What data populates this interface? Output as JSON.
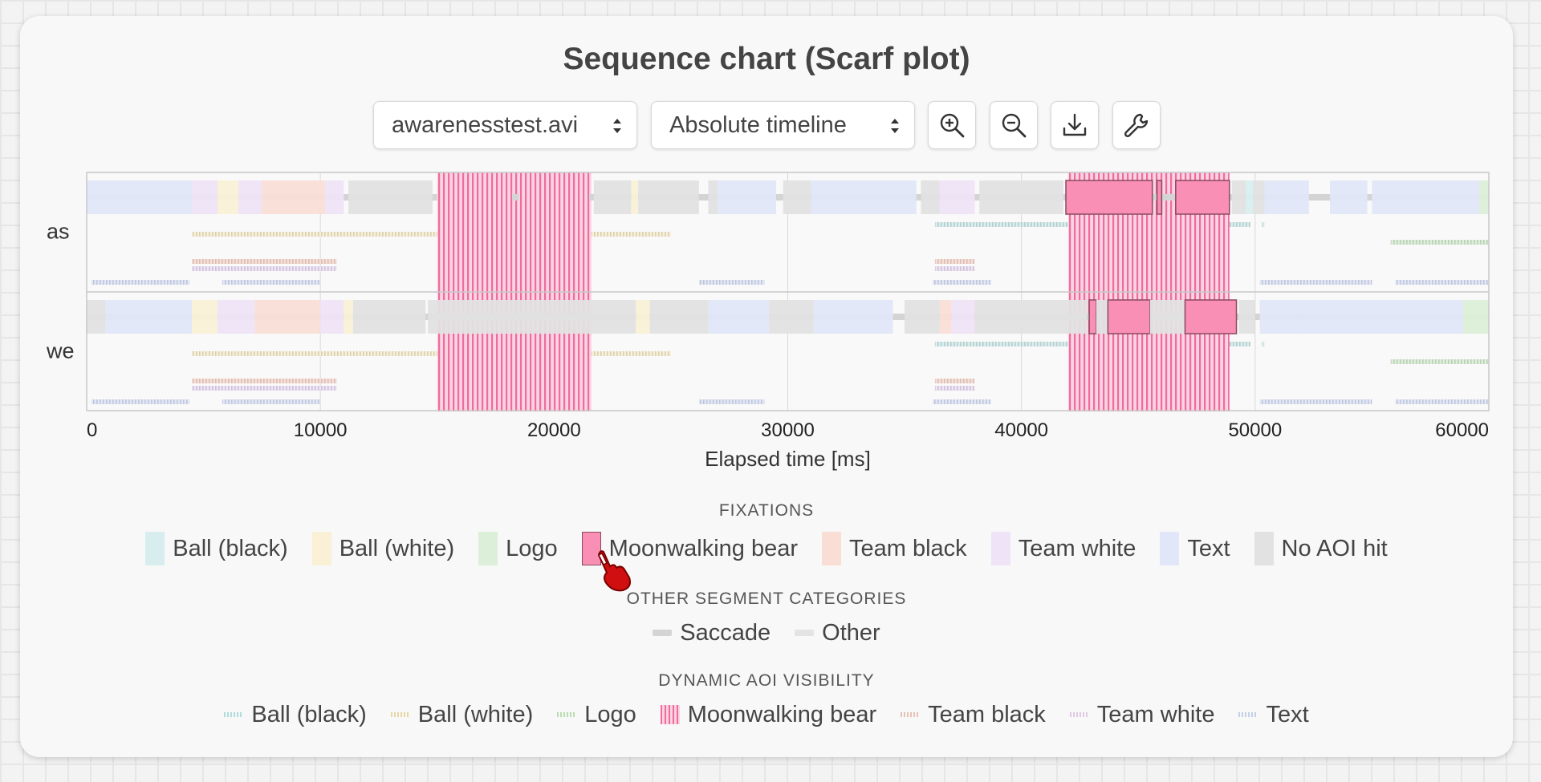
{
  "title": "Sequence chart (Scarf plot)",
  "controls": {
    "stimulus_select": "awarenesstest.avi",
    "timeline_select": "Absolute timeline",
    "icons": [
      "zoom-in-icon",
      "zoom-out-icon",
      "download-icon",
      "wrench-icon"
    ]
  },
  "colors": {
    "ball_black": "#d8eeee",
    "ball_white": "#f9f0d6",
    "logo": "#dcefd8",
    "moonwalking_bear": "#f98fb4",
    "team_black": "#f9ded6",
    "team_white": "#efe3f7",
    "text": "#e1e7f8",
    "no_aoi": "#e2e2e2",
    "saccade": "#d4d4d4",
    "other": "#e4e4e4"
  },
  "chart_data": {
    "type": "scarf",
    "xlabel": "Elapsed time [ms]",
    "xlim": [
      0,
      60000
    ],
    "xticks": [
      0,
      10000,
      20000,
      30000,
      40000,
      50000,
      60000
    ],
    "participants": [
      {
        "name": "as",
        "fixations": [
          {
            "aoi": "text",
            "start": 0,
            "end": 4500
          },
          {
            "aoi": "team_white",
            "start": 4500,
            "end": 5600
          },
          {
            "aoi": "ball_white",
            "start": 5600,
            "end": 6500
          },
          {
            "aoi": "team_white",
            "start": 6500,
            "end": 7500
          },
          {
            "aoi": "team_black",
            "start": 7500,
            "end": 10200
          },
          {
            "aoi": "team_white",
            "start": 10200,
            "end": 11000
          },
          {
            "aoi": "no_aoi",
            "start": 11200,
            "end": 14800
          },
          {
            "aoi": "moonwalking_bear",
            "start": 15000,
            "end": 18200
          },
          {
            "aoi": "moonwalking_bear",
            "start": 18500,
            "end": 21500
          },
          {
            "aoi": "no_aoi",
            "start": 21700,
            "end": 23300
          },
          {
            "aoi": "ball_white",
            "start": 23300,
            "end": 23600
          },
          {
            "aoi": "no_aoi",
            "start": 23600,
            "end": 26200
          },
          {
            "aoi": "no_aoi",
            "start": 26600,
            "end": 27000
          },
          {
            "aoi": "text",
            "start": 27000,
            "end": 29500
          },
          {
            "aoi": "no_aoi",
            "start": 29800,
            "end": 31000
          },
          {
            "aoi": "text",
            "start": 31000,
            "end": 35500
          },
          {
            "aoi": "no_aoi",
            "start": 35700,
            "end": 36500
          },
          {
            "aoi": "team_white",
            "start": 36500,
            "end": 38000
          },
          {
            "aoi": "no_aoi",
            "start": 38200,
            "end": 41800
          },
          {
            "aoi": "moonwalking_bear",
            "start": 41900,
            "end": 45600
          },
          {
            "aoi": "moonwalking_bear",
            "start": 45800,
            "end": 46000
          },
          {
            "aoi": "moonwalking_bear",
            "start": 46600,
            "end": 48900
          },
          {
            "aoi": "no_aoi",
            "start": 49000,
            "end": 49600
          },
          {
            "aoi": "ball_black",
            "start": 49600,
            "end": 49900
          },
          {
            "aoi": "no_aoi",
            "start": 49900,
            "end": 50400
          },
          {
            "aoi": "text",
            "start": 50400,
            "end": 52300
          },
          {
            "aoi": "text",
            "start": 53200,
            "end": 54800
          },
          {
            "aoi": "text",
            "start": 55000,
            "end": 59600
          },
          {
            "aoi": "logo",
            "start": 59600,
            "end": 60000
          }
        ]
      },
      {
        "name": "we",
        "fixations": [
          {
            "aoi": "no_aoi",
            "start": 0,
            "end": 800
          },
          {
            "aoi": "text",
            "start": 800,
            "end": 4500
          },
          {
            "aoi": "ball_white",
            "start": 4500,
            "end": 5600
          },
          {
            "aoi": "team_white",
            "start": 5600,
            "end": 7200
          },
          {
            "aoi": "team_black",
            "start": 7200,
            "end": 10000
          },
          {
            "aoi": "team_white",
            "start": 10000,
            "end": 11000
          },
          {
            "aoi": "ball_white",
            "start": 11000,
            "end": 11400
          },
          {
            "aoi": "no_aoi",
            "start": 11400,
            "end": 14500
          },
          {
            "aoi": "no_aoi",
            "start": 14600,
            "end": 23500
          },
          {
            "aoi": "ball_white",
            "start": 23500,
            "end": 24100
          },
          {
            "aoi": "no_aoi",
            "start": 24100,
            "end": 26600
          },
          {
            "aoi": "text",
            "start": 26600,
            "end": 29200
          },
          {
            "aoi": "no_aoi",
            "start": 29200,
            "end": 31100
          },
          {
            "aoi": "text",
            "start": 31100,
            "end": 34500
          },
          {
            "aoi": "no_aoi",
            "start": 35000,
            "end": 36500
          },
          {
            "aoi": "team_black",
            "start": 36500,
            "end": 37000
          },
          {
            "aoi": "team_white",
            "start": 37000,
            "end": 38000
          },
          {
            "aoi": "no_aoi",
            "start": 38000,
            "end": 42800
          },
          {
            "aoi": "moonwalking_bear",
            "start": 42900,
            "end": 43200
          },
          {
            "aoi": "no_aoi",
            "start": 43200,
            "end": 43700
          },
          {
            "aoi": "moonwalking_bear",
            "start": 43700,
            "end": 45500
          },
          {
            "aoi": "no_aoi",
            "start": 45500,
            "end": 47000
          },
          {
            "aoi": "moonwalking_bear",
            "start": 47000,
            "end": 49200
          },
          {
            "aoi": "no_aoi",
            "start": 49300,
            "end": 50000
          },
          {
            "aoi": "text",
            "start": 50200,
            "end": 52000
          },
          {
            "aoi": "text",
            "start": 52000,
            "end": 58900
          },
          {
            "aoi": "logo",
            "start": 58900,
            "end": 60000
          }
        ]
      }
    ],
    "dynamic_aoi_visibility": [
      {
        "aoi": "text",
        "intervals": [
          [
            200,
            4400
          ],
          [
            5800,
            10000
          ],
          [
            26200,
            29000
          ],
          [
            36200,
            38700
          ],
          [
            50200,
            55000
          ],
          [
            56000,
            60000
          ]
        ]
      },
      {
        "aoi": "team_black",
        "intervals": [
          [
            4500,
            10700
          ],
          [
            36300,
            38000
          ]
        ]
      },
      {
        "aoi": "team_white",
        "intervals": [
          [
            4500,
            10700
          ],
          [
            36300,
            38000
          ]
        ]
      },
      {
        "aoi": "logo",
        "intervals": [
          [
            55800,
            60000
          ]
        ]
      },
      {
        "aoi": "ball_white",
        "intervals": [
          [
            4500,
            25000
          ]
        ]
      },
      {
        "aoi": "ball_black",
        "intervals": [
          [
            36300,
            49800
          ],
          [
            50300,
            50400
          ]
        ]
      },
      {
        "aoi": "moonwalking_bear",
        "intervals": [
          [
            15000,
            21600
          ],
          [
            42000,
            48900
          ]
        ]
      }
    ]
  },
  "legend": {
    "fixations_title": "FIXATIONS",
    "fixations": [
      {
        "label": "Ball (black)",
        "key": "ball_black"
      },
      {
        "label": "Ball (white)",
        "key": "ball_white"
      },
      {
        "label": "Logo",
        "key": "logo"
      },
      {
        "label": "Moonwalking bear",
        "key": "moonwalking_bear"
      },
      {
        "label": "Team black",
        "key": "team_black"
      },
      {
        "label": "Team white",
        "key": "team_white"
      },
      {
        "label": "Text",
        "key": "text"
      },
      {
        "label": "No AOI hit",
        "key": "no_aoi"
      }
    ],
    "other_title": "OTHER SEGMENT CATEGORIES",
    "other": [
      {
        "label": "Saccade",
        "key": "saccade"
      },
      {
        "label": "Other",
        "key": "other"
      }
    ],
    "visibility_title": "DYNAMIC AOI VISIBILITY",
    "visibility": [
      {
        "label": "Ball (black)",
        "key": "ball_black"
      },
      {
        "label": "Ball (white)",
        "key": "ball_white"
      },
      {
        "label": "Logo",
        "key": "logo"
      },
      {
        "label": "Moonwalking bear",
        "key": "moonwalking_bear"
      },
      {
        "label": "Team black",
        "key": "team_black"
      },
      {
        "label": "Team white",
        "key": "team_white"
      },
      {
        "label": "Text",
        "key": "text"
      }
    ]
  }
}
